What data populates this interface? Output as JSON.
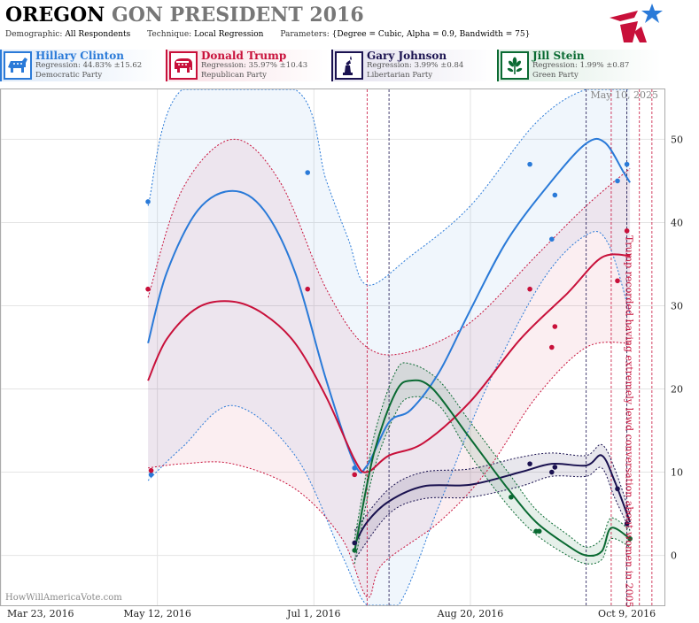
{
  "title": {
    "state": "OREGON",
    "rest": "GON PRESIDENT 2016"
  },
  "params": {
    "demographic_label": "Demographic:",
    "demographic": "All Respondents",
    "technique_label": "Technique:",
    "technique": "Local Regression",
    "parameters_label": "Parameters:",
    "parameters": "{Degree = Cubic, Alpha = 0.9, Bandwidth = 75}"
  },
  "candidates": [
    {
      "name": "Hillary Clinton",
      "regression": "Regression: 44.83% ±15.62",
      "party": "Democratic Party",
      "color": "#2a7ad8",
      "icon": "donkey-icon"
    },
    {
      "name": "Donald Trump",
      "regression": "Regression: 35.97% ±10.43",
      "party": "Republican Party",
      "color": "#c8103a",
      "icon": "elephant-icon"
    },
    {
      "name": "Gary Johnson",
      "regression": "Regression: 3.99% ±0.84",
      "party": "Libertarian Party",
      "color": "#1a1250",
      "icon": "liberty-statue-icon"
    },
    {
      "name": "Jill Stein",
      "regression": "Regression: 1.99% ±0.87",
      "party": "Green Party",
      "color": "#0a6a32",
      "icon": "flower-icon"
    }
  ],
  "watermark": "HowWillAmericaVote.com",
  "chart_data": {
    "type": "line",
    "date_label": "May 10, 2025",
    "x_ticks": [
      "Mar 23, 2016",
      "May 12, 2016",
      "Jul 1, 2016",
      "Aug 20, 2016",
      "Oct 9, 2016"
    ],
    "xlim": [
      "2016-03-23",
      "2016-10-21"
    ],
    "ylim": [
      -6,
      56
    ],
    "y_ticks": [
      0,
      10,
      20,
      30,
      40,
      50
    ],
    "annotation": {
      "text": "Trump recorded having extremely lewd conversation about women in 2005",
      "date": "2016-10-07"
    },
    "event_lines": [
      "2016-07-18",
      "2016-07-25",
      "2016-09-26",
      "2016-10-04",
      "2016-10-09",
      "2016-10-13",
      "2016-10-17"
    ],
    "series": [
      {
        "name": "Hillary Clinton",
        "color": "#2a7ad8",
        "points": [
          [
            "2016-05-09",
            42.5
          ],
          [
            "2016-05-10",
            9.7
          ],
          [
            "2016-06-29",
            46
          ],
          [
            "2016-07-14",
            10.5
          ],
          [
            "2016-09-08",
            47
          ],
          [
            "2016-09-15",
            38
          ],
          [
            "2016-09-16",
            43.3
          ],
          [
            "2016-10-06",
            45
          ],
          [
            "2016-10-09",
            47
          ]
        ],
        "curve": [
          [
            "2016-05-09",
            25.5
          ],
          [
            "2016-05-15",
            34
          ],
          [
            "2016-05-25",
            41.5
          ],
          [
            "2016-06-05",
            43.8
          ],
          [
            "2016-06-15",
            41.5
          ],
          [
            "2016-06-25",
            34
          ],
          [
            "2016-07-05",
            21
          ],
          [
            "2016-07-14",
            11
          ],
          [
            "2016-07-18",
            10.8
          ],
          [
            "2016-07-25",
            16
          ],
          [
            "2016-08-01",
            17.5
          ],
          [
            "2016-08-10",
            22
          ],
          [
            "2016-08-20",
            29.5
          ],
          [
            "2016-09-01",
            38
          ],
          [
            "2016-09-15",
            45
          ],
          [
            "2016-09-26",
            49.5
          ],
          [
            "2016-10-02",
            49.6
          ],
          [
            "2016-10-08",
            46
          ],
          [
            "2016-10-10",
            44.8
          ]
        ],
        "upper": [
          [
            "2016-05-09",
            42
          ],
          [
            "2016-05-20",
            56
          ],
          [
            "2016-06-25",
            56
          ],
          [
            "2016-07-05",
            45
          ],
          [
            "2016-07-12",
            38
          ],
          [
            "2016-07-18",
            32.5
          ],
          [
            "2016-08-01",
            36
          ],
          [
            "2016-08-20",
            42
          ],
          [
            "2016-09-10",
            52
          ],
          [
            "2016-09-26",
            56
          ],
          [
            "2016-10-10",
            56
          ]
        ],
        "lower": [
          [
            "2016-05-09",
            9
          ],
          [
            "2016-05-20",
            13
          ],
          [
            "2016-06-05",
            18
          ],
          [
            "2016-06-25",
            12
          ],
          [
            "2016-07-10",
            0
          ],
          [
            "2016-07-18",
            -6
          ],
          [
            "2016-07-28",
            -6
          ],
          [
            "2016-08-10",
            6
          ],
          [
            "2016-08-25",
            20
          ],
          [
            "2016-09-12",
            33
          ],
          [
            "2016-09-26",
            38.5
          ],
          [
            "2016-10-03",
            37.5
          ],
          [
            "2016-10-10",
            29
          ]
        ]
      },
      {
        "name": "Donald Trump",
        "color": "#c8103a",
        "points": [
          [
            "2016-05-09",
            32
          ],
          [
            "2016-05-10",
            10.2
          ],
          [
            "2016-06-29",
            32
          ],
          [
            "2016-07-14",
            9.7
          ],
          [
            "2016-09-08",
            32
          ],
          [
            "2016-09-15",
            25
          ],
          [
            "2016-09-16",
            27.5
          ],
          [
            "2016-10-06",
            33
          ],
          [
            "2016-10-09",
            39
          ]
        ],
        "curve": [
          [
            "2016-05-09",
            21
          ],
          [
            "2016-05-15",
            26
          ],
          [
            "2016-05-25",
            29.8
          ],
          [
            "2016-06-05",
            30.5
          ],
          [
            "2016-06-15",
            29
          ],
          [
            "2016-06-25",
            25.5
          ],
          [
            "2016-07-05",
            19
          ],
          [
            "2016-07-14",
            11.5
          ],
          [
            "2016-07-18",
            10
          ],
          [
            "2016-07-25",
            12
          ],
          [
            "2016-08-05",
            13.5
          ],
          [
            "2016-08-20",
            18.5
          ],
          [
            "2016-09-05",
            26
          ],
          [
            "2016-09-20",
            31.5
          ],
          [
            "2016-10-01",
            35.8
          ],
          [
            "2016-10-10",
            36
          ]
        ],
        "upper": [
          [
            "2016-05-09",
            31
          ],
          [
            "2016-05-20",
            44
          ],
          [
            "2016-06-05",
            50
          ],
          [
            "2016-06-20",
            45
          ],
          [
            "2016-07-05",
            32
          ],
          [
            "2016-07-18",
            25
          ],
          [
            "2016-08-01",
            24.5
          ],
          [
            "2016-08-20",
            28
          ],
          [
            "2016-09-10",
            36
          ],
          [
            "2016-09-26",
            42
          ],
          [
            "2016-10-10",
            46.5
          ]
        ],
        "lower": [
          [
            "2016-05-09",
            10.5
          ],
          [
            "2016-05-20",
            11
          ],
          [
            "2016-06-05",
            11
          ],
          [
            "2016-06-25",
            8
          ],
          [
            "2016-07-10",
            2
          ],
          [
            "2016-07-18",
            -5
          ],
          [
            "2016-07-23",
            -1
          ],
          [
            "2016-08-10",
            4
          ],
          [
            "2016-08-25",
            10
          ],
          [
            "2016-09-10",
            19
          ],
          [
            "2016-09-26",
            25
          ],
          [
            "2016-10-10",
            25.5
          ]
        ]
      },
      {
        "name": "Gary Johnson",
        "color": "#1a1250",
        "points": [
          [
            "2016-07-14",
            1.5
          ],
          [
            "2016-09-08",
            11
          ],
          [
            "2016-09-15",
            10
          ],
          [
            "2016-09-16",
            10.6
          ],
          [
            "2016-10-06",
            8
          ],
          [
            "2016-10-09",
            3.8
          ]
        ],
        "curve": [
          [
            "2016-07-14",
            1.3
          ],
          [
            "2016-07-18",
            4
          ],
          [
            "2016-07-25",
            6.5
          ],
          [
            "2016-08-05",
            8.3
          ],
          [
            "2016-08-20",
            8.5
          ],
          [
            "2016-09-05",
            10
          ],
          [
            "2016-09-15",
            11
          ],
          [
            "2016-09-26",
            10.8
          ],
          [
            "2016-10-01",
            12
          ],
          [
            "2016-10-05",
            9
          ],
          [
            "2016-10-10",
            4
          ]
        ],
        "upper": [
          [
            "2016-07-14",
            3
          ],
          [
            "2016-07-25",
            8
          ],
          [
            "2016-08-05",
            10
          ],
          [
            "2016-08-20",
            10.4
          ],
          [
            "2016-09-05",
            11.8
          ],
          [
            "2016-09-15",
            12.3
          ],
          [
            "2016-09-26",
            12
          ],
          [
            "2016-10-01",
            13.3
          ],
          [
            "2016-10-05",
            10.5
          ],
          [
            "2016-10-10",
            5
          ]
        ],
        "lower": [
          [
            "2016-07-14",
            -0.5
          ],
          [
            "2016-07-25",
            5
          ],
          [
            "2016-08-05",
            6.8
          ],
          [
            "2016-08-20",
            7
          ],
          [
            "2016-09-05",
            8.3
          ],
          [
            "2016-09-15",
            9.5
          ],
          [
            "2016-09-26",
            9.5
          ],
          [
            "2016-10-01",
            10.5
          ],
          [
            "2016-10-05",
            7
          ],
          [
            "2016-10-10",
            3
          ]
        ]
      },
      {
        "name": "Jill Stein",
        "color": "#0a6a32",
        "points": [
          [
            "2016-07-14",
            0.6
          ],
          [
            "2016-09-02",
            7
          ],
          [
            "2016-09-10",
            2.9
          ],
          [
            "2016-09-11",
            2.9
          ],
          [
            "2016-10-10",
            2
          ]
        ],
        "curve": [
          [
            "2016-07-14",
            0.5
          ],
          [
            "2016-07-20",
            12
          ],
          [
            "2016-07-27",
            19.5
          ],
          [
            "2016-08-01",
            21
          ],
          [
            "2016-08-08",
            20
          ],
          [
            "2016-08-20",
            14
          ],
          [
            "2016-09-01",
            8
          ],
          [
            "2016-09-10",
            4
          ],
          [
            "2016-09-20",
            1.2
          ],
          [
            "2016-09-26",
            0
          ],
          [
            "2016-10-01",
            0.5
          ],
          [
            "2016-10-04",
            3.3
          ],
          [
            "2016-10-10",
            2
          ]
        ],
        "upper": [
          [
            "2016-07-14",
            2
          ],
          [
            "2016-07-20",
            14
          ],
          [
            "2016-07-27",
            22
          ],
          [
            "2016-08-01",
            23
          ],
          [
            "2016-08-10",
            21
          ],
          [
            "2016-08-20",
            16
          ],
          [
            "2016-09-01",
            10
          ],
          [
            "2016-09-10",
            5.5
          ],
          [
            "2016-09-20",
            2.5
          ],
          [
            "2016-09-26",
            1
          ],
          [
            "2016-10-01",
            2
          ],
          [
            "2016-10-04",
            4.5
          ],
          [
            "2016-10-10",
            3
          ]
        ],
        "lower": [
          [
            "2016-07-14",
            -1
          ],
          [
            "2016-07-20",
            10
          ],
          [
            "2016-07-27",
            17
          ],
          [
            "2016-08-01",
            19
          ],
          [
            "2016-08-10",
            18
          ],
          [
            "2016-08-20",
            12
          ],
          [
            "2016-09-01",
            6
          ],
          [
            "2016-09-10",
            2.5
          ],
          [
            "2016-09-20",
            0
          ],
          [
            "2016-09-26",
            -1
          ],
          [
            "2016-10-01",
            -0.5
          ],
          [
            "2016-10-04",
            2
          ],
          [
            "2016-10-10",
            1
          ]
        ]
      }
    ]
  }
}
